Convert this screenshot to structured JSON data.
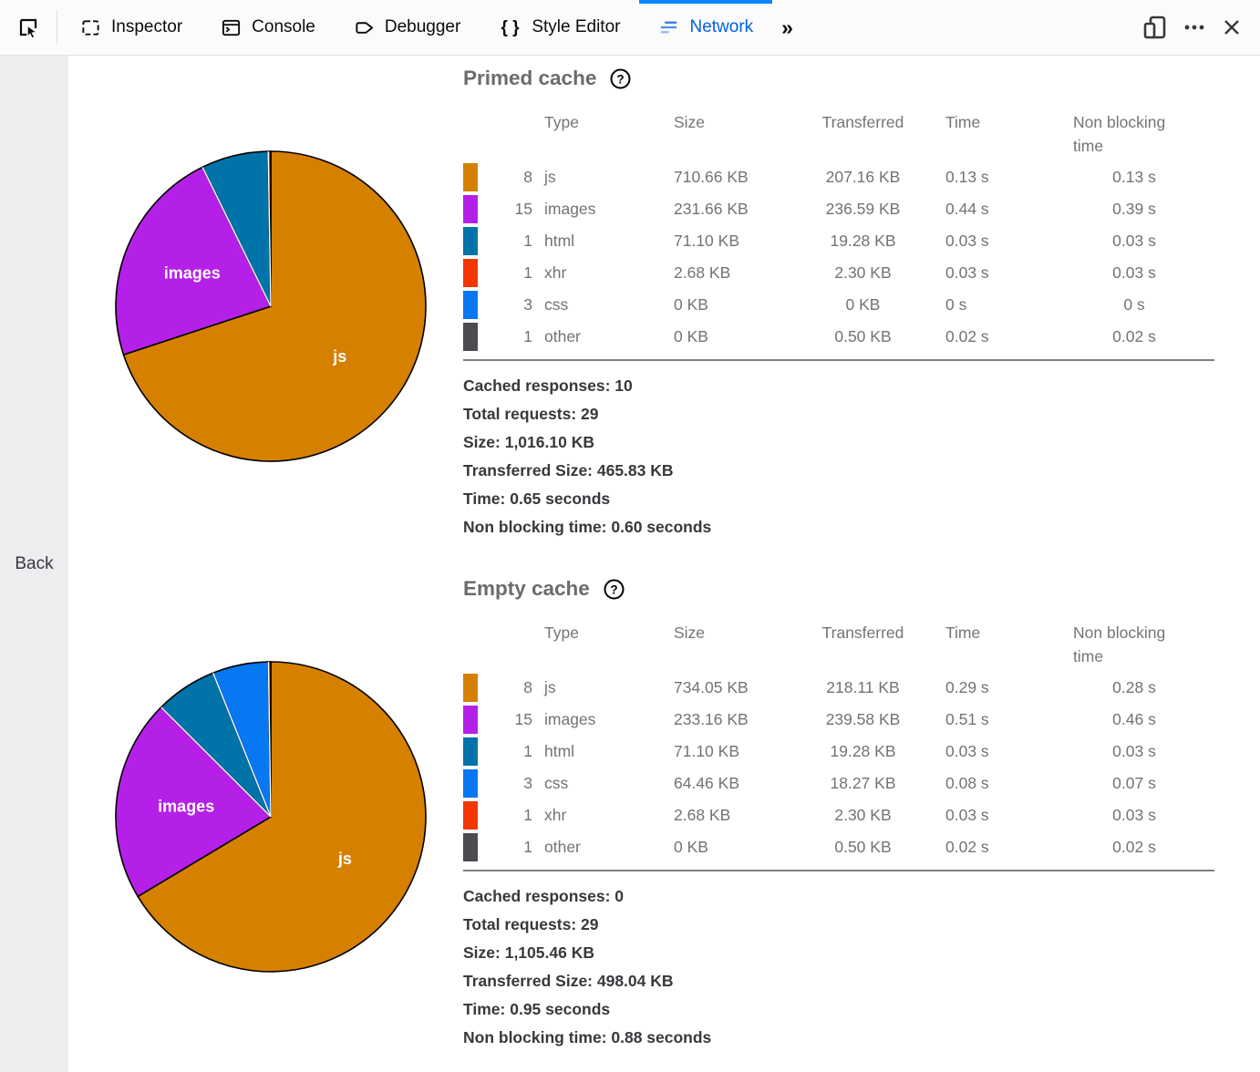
{
  "toolbar": {
    "tabs": [
      {
        "label": "Inspector",
        "icon": "inspector-icon"
      },
      {
        "label": "Console",
        "icon": "console-icon"
      },
      {
        "label": "Debugger",
        "icon": "debugger-icon"
      },
      {
        "label": "Style Editor",
        "icon": "style-editor-icon"
      },
      {
        "label": "Network",
        "icon": "network-icon",
        "active": true
      }
    ],
    "active_tab": "Network",
    "active_color": "#0060df",
    "active_bar_color": "#0a84ff",
    "overflow_chevron": "»"
  },
  "sidebar": {
    "back_label": "Back"
  },
  "sections": [
    {
      "title": "Primed cache",
      "columns": [
        "Type",
        "Size",
        "Transferred",
        "Time",
        "Non blocking time"
      ],
      "rows": [
        {
          "color": "#d68000",
          "count": "8",
          "type": "js",
          "size": "710.66 KB",
          "transferred": "207.16 KB",
          "time": "0.13 s",
          "nonblocking": "0.13 s"
        },
        {
          "color": "#b520e8",
          "count": "15",
          "type": "images",
          "size": "231.66 KB",
          "transferred": "236.59 KB",
          "time": "0.44 s",
          "nonblocking": "0.39 s"
        },
        {
          "color": "#0073a8",
          "count": "1",
          "type": "html",
          "size": "71.10 KB",
          "transferred": "19.28 KB",
          "time": "0.03 s",
          "nonblocking": "0.03 s"
        },
        {
          "color": "#f23705",
          "count": "1",
          "type": "xhr",
          "size": "2.68 KB",
          "transferred": "2.30 KB",
          "time": "0.03 s",
          "nonblocking": "0.03 s"
        },
        {
          "color": "#0777f2",
          "count": "3",
          "type": "css",
          "size": "0 KB",
          "transferred": "0 KB",
          "time": "0 s",
          "nonblocking": "0 s"
        },
        {
          "color": "#4c4c50",
          "count": "1",
          "type": "other",
          "size": "0 KB",
          "transferred": "0.50 KB",
          "time": "0.02 s",
          "nonblocking": "0.02 s"
        }
      ],
      "summary": [
        "Cached responses: 10",
        "Total requests: 29",
        "Size: 1,016.10 KB",
        "Transferred Size: 465.83 KB",
        "Time: 0.65 seconds",
        "Non blocking time: 0.60 seconds"
      ]
    },
    {
      "title": "Empty cache",
      "columns": [
        "Type",
        "Size",
        "Transferred",
        "Time",
        "Non blocking time"
      ],
      "rows": [
        {
          "color": "#d68000",
          "count": "8",
          "type": "js",
          "size": "734.05 KB",
          "transferred": "218.11 KB",
          "time": "0.29 s",
          "nonblocking": "0.28 s"
        },
        {
          "color": "#b520e8",
          "count": "15",
          "type": "images",
          "size": "233.16 KB",
          "transferred": "239.58 KB",
          "time": "0.51 s",
          "nonblocking": "0.46 s"
        },
        {
          "color": "#0073a8",
          "count": "1",
          "type": "html",
          "size": "71.10 KB",
          "transferred": "19.28 KB",
          "time": "0.03 s",
          "nonblocking": "0.03 s"
        },
        {
          "color": "#0777f2",
          "count": "3",
          "type": "css",
          "size": "64.46 KB",
          "transferred": "18.27 KB",
          "time": "0.08 s",
          "nonblocking": "0.07 s"
        },
        {
          "color": "#f23705",
          "count": "1",
          "type": "xhr",
          "size": "2.68 KB",
          "transferred": "2.30 KB",
          "time": "0.03 s",
          "nonblocking": "0.03 s"
        },
        {
          "color": "#4c4c50",
          "count": "1",
          "type": "other",
          "size": "0 KB",
          "transferred": "0.50 KB",
          "time": "0.02 s",
          "nonblocking": "0.02 s"
        }
      ],
      "summary": [
        "Cached responses: 0",
        "Total requests: 29",
        "Size: 1,105.46 KB",
        "Transferred Size: 498.04 KB",
        "Time: 0.95 seconds",
        "Non blocking time: 0.88 seconds"
      ]
    }
  ],
  "chart_data": [
    {
      "type": "pie",
      "title": "Primed cache",
      "unit": "KB",
      "legend_position": "none",
      "slices": [
        {
          "label": "js",
          "value": 710.66,
          "color": "#d68000"
        },
        {
          "label": "images",
          "value": 231.66,
          "color": "#b520e8"
        },
        {
          "label": "html",
          "value": 71.1,
          "color": "#0073a8"
        },
        {
          "label": "xhr",
          "value": 2.68,
          "color": "#f23705"
        },
        {
          "label": "css",
          "value": 0,
          "color": "#0777f2"
        },
        {
          "label": "other",
          "value": 0,
          "color": "#4c4c50"
        }
      ]
    },
    {
      "type": "pie",
      "title": "Empty cache",
      "unit": "KB",
      "legend_position": "none",
      "slices": [
        {
          "label": "js",
          "value": 734.05,
          "color": "#d68000"
        },
        {
          "label": "images",
          "value": 233.16,
          "color": "#b520e8"
        },
        {
          "label": "html",
          "value": 71.1,
          "color": "#0073a8"
        },
        {
          "label": "css",
          "value": 64.46,
          "color": "#0777f2"
        },
        {
          "label": "xhr",
          "value": 2.68,
          "color": "#f23705"
        },
        {
          "label": "other",
          "value": 0,
          "color": "#4c4c50"
        }
      ]
    }
  ]
}
